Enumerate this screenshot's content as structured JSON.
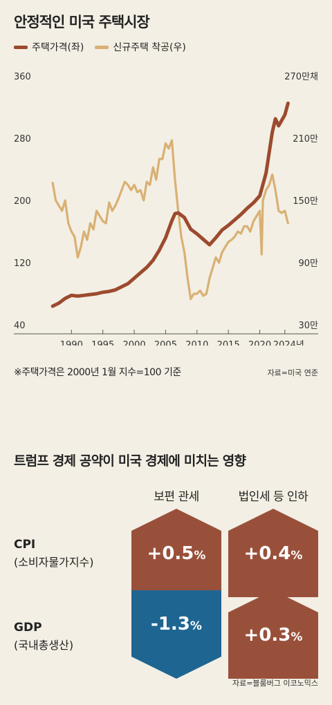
{
  "title": "안정적인 미국 주택시장",
  "legend": {
    "price": "주택가격(좌)",
    "starts": "신규주택 착공(우)"
  },
  "colors": {
    "price": "#9c4a2e",
    "starts": "#d9b074",
    "increase": "#99503b",
    "decrease": "#1f6592",
    "background": "#f3efe4"
  },
  "footnote": "※주택가격은 2000년 1월 지수=100 기준",
  "source1": "자료=미국 연준",
  "chart_data": {
    "type": "line",
    "title": "안정적인 미국 주택시장",
    "x_ticks": [
      "1990",
      "1995",
      "2000",
      "2005",
      "2010",
      "2015",
      "2020",
      "2024년"
    ],
    "x_range": [
      1986,
      2026
    ],
    "y_left": {
      "range": [
        40,
        360
      ],
      "ticks": [
        "40",
        "120",
        "200",
        "280",
        "360"
      ]
    },
    "y_right": {
      "range": [
        30,
        270
      ],
      "unit": "만채",
      "ticks": [
        "30만",
        "90만",
        "150만",
        "210만",
        "270만채"
      ]
    },
    "grid": false,
    "legend_position": "top-left",
    "series": [
      {
        "name": "주택가격(좌)",
        "axis": "left",
        "x": [
          1987,
          1988,
          1989,
          1990,
          1991,
          1992,
          1993,
          1994,
          1995,
          1996,
          1997,
          1998,
          1999,
          2000,
          2001,
          2002,
          2003,
          2004,
          2005,
          2006,
          2006.5,
          2007,
          2008,
          2009,
          2010,
          2011,
          2012,
          2013,
          2014,
          2015,
          2016,
          2017,
          2018,
          2019,
          2020,
          2021,
          2022,
          2022.5,
          2023,
          2024,
          2024.5
        ],
        "values": [
          64,
          68,
          74,
          78,
          77,
          78,
          79,
          80,
          82,
          83,
          85,
          89,
          93,
          100,
          107,
          114,
          123,
          136,
          152,
          174,
          183,
          184,
          178,
          163,
          157,
          150,
          143,
          152,
          162,
          168,
          175,
          182,
          190,
          197,
          206,
          235,
          288,
          305,
          296,
          310,
          325
        ]
      },
      {
        "name": "신규주택 착공(우)",
        "axis": "right",
        "x": [
          1987,
          1987.5,
          1988,
          1988.5,
          1989,
          1989.5,
          1990,
          1990.5,
          1991,
          1991.5,
          1992,
          1992.5,
          1993,
          1993.5,
          1994,
          1994.5,
          1995,
          1995.5,
          1996,
          1996.5,
          1997,
          1997.5,
          1998,
          1998.5,
          1999,
          1999.5,
          2000,
          2000.5,
          2001,
          2001.5,
          2002,
          2002.5,
          2003,
          2003.5,
          2004,
          2004.5,
          2005,
          2005.5,
          2006,
          2006.5,
          2007,
          2007.5,
          2008,
          2008.5,
          2009,
          2009.5,
          2010,
          2010.5,
          2011,
          2011.5,
          2012,
          2012.5,
          2013,
          2013.5,
          2014,
          2014.5,
          2015,
          2015.5,
          2016,
          2016.5,
          2017,
          2017.5,
          2018,
          2018.5,
          2019,
          2019.5,
          2020,
          2020.3,
          2020.5,
          2021,
          2021.5,
          2022,
          2022.5,
          2023,
          2023.5,
          2024,
          2024.5
        ],
        "values": [
          167,
          150,
          145,
          140,
          150,
          128,
          120,
          115,
          95,
          105,
          120,
          112,
          128,
          122,
          140,
          135,
          130,
          128,
          148,
          140,
          145,
          152,
          160,
          168,
          165,
          160,
          165,
          158,
          160,
          150,
          168,
          165,
          182,
          170,
          190,
          190,
          205,
          200,
          208,
          170,
          140,
          115,
          100,
          75,
          55,
          60,
          60,
          63,
          58,
          60,
          75,
          85,
          95,
          90,
          100,
          105,
          110,
          112,
          115,
          120,
          118,
          125,
          125,
          120,
          130,
          135,
          140,
          98,
          150,
          160,
          165,
          175,
          160,
          140,
          138,
          140,
          128
        ]
      }
    ]
  },
  "section2": {
    "title": "트럼프 경제 공약이 미국 경제에 미치는 영향",
    "col1": "보편 관세",
    "col2": "법인세 등 인하",
    "rows": [
      {
        "main": "CPI",
        "sub": "(소비자물가지수)",
        "cells": [
          {
            "sign": "+0.5",
            "unit": "%",
            "direction": "up"
          },
          {
            "sign": "+0.4",
            "unit": "%",
            "direction": "up"
          }
        ]
      },
      {
        "main": "GDP",
        "sub": "(국내총생산)",
        "cells": [
          {
            "sign": "-1.3",
            "unit": "%",
            "direction": "down"
          },
          {
            "sign": "+0.3",
            "unit": "%",
            "direction": "up"
          }
        ]
      }
    ],
    "source": "자료=블룸버그 이코노믹스"
  }
}
